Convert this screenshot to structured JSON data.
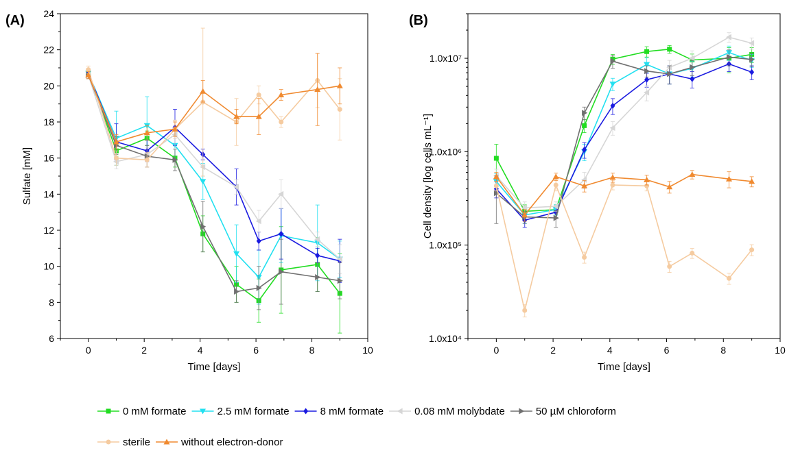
{
  "chart_data": [
    {
      "panel_label": "(A)",
      "type": "line",
      "xlabel": "Time [days]",
      "ylabel": "Sulfate [mM]",
      "xlim": [
        -1,
        10
      ],
      "ylim": [
        6,
        24
      ],
      "xticks": [
        0,
        2,
        4,
        6,
        8,
        10
      ],
      "yticks": [
        6,
        8,
        10,
        12,
        14,
        16,
        18,
        20,
        22,
        24
      ],
      "series": [
        {
          "name": "0 mM formate",
          "color": "#22dd22",
          "marker": "square",
          "x": [
            0,
            1,
            2.1,
            3.1,
            4.1,
            5.3,
            6.1,
            6.9,
            8.2,
            9
          ],
          "y": [
            20.7,
            16.4,
            17.1,
            16.0,
            11.8,
            9.0,
            8.1,
            9.8,
            10.1,
            8.5
          ],
          "err": [
            0.2,
            0.3,
            0.4,
            0.5,
            1.0,
            1.0,
            1.2,
            2.4,
            1.5,
            2.2
          ]
        },
        {
          "name": "2.5 mM formate",
          "color": "#22e0f0",
          "marker": "triangle-down",
          "x": [
            0,
            1,
            2.1,
            3.1,
            4.1,
            5.3,
            6.1,
            6.9,
            8.2,
            9
          ],
          "y": [
            20.7,
            17.1,
            17.8,
            16.7,
            14.7,
            10.7,
            9.4,
            11.7,
            11.3,
            10.4
          ],
          "err": [
            0.2,
            1.5,
            1.6,
            0.8,
            1.0,
            1.6,
            1.5,
            1.5,
            2.1,
            1.0
          ]
        },
        {
          "name": "8 mM formate",
          "color": "#1a1ae0",
          "marker": "diamond",
          "x": [
            0,
            1,
            2.1,
            3.1,
            4.1,
            5.3,
            6.1,
            6.9,
            8.2,
            9
          ],
          "y": [
            20.7,
            16.9,
            16.4,
            17.7,
            16.2,
            14.4,
            11.4,
            11.8,
            10.6,
            10.3
          ],
          "err": [
            0.2,
            1.0,
            0.6,
            1.0,
            0.3,
            1.0,
            0.5,
            1.4,
            0.4,
            1.2
          ]
        },
        {
          "name": "0.08 mM molybdate",
          "color": "#d6d6d6",
          "marker": "triangle-left",
          "x": [
            0,
            1,
            2.1,
            3.1,
            4.1,
            5.3,
            6.1,
            6.9,
            8.2,
            9
          ],
          "y": [
            20.6,
            15.8,
            16.2,
            17.3,
            15.5,
            14.4,
            12.5,
            14.0,
            11.5,
            10.4
          ],
          "err": [
            0.2,
            0.4,
            0.4,
            0.8,
            0.5,
            0.4,
            0.6,
            0.8,
            0.4,
            0.8
          ]
        },
        {
          "name": "50 µM chloroform",
          "color": "#707070",
          "marker": "triangle-right",
          "x": [
            0,
            1,
            2.1,
            3.1,
            4.1,
            5.3,
            6.1,
            6.9,
            8.2,
            9
          ],
          "y": [
            20.6,
            16.7,
            16.1,
            15.9,
            12.2,
            8.6,
            8.8,
            9.7,
            9.4,
            9.2
          ],
          "err": [
            0.2,
            0.5,
            0.6,
            0.6,
            1.4,
            0.6,
            1.2,
            1.8,
            0.8,
            1.0
          ]
        },
        {
          "name": "sterile",
          "color": "#f5cba0",
          "marker": "circle",
          "x": [
            0,
            1,
            2.1,
            3.1,
            4.1,
            5.3,
            6.1,
            6.9,
            8.2,
            9
          ],
          "y": [
            20.9,
            16.0,
            15.9,
            17.6,
            19.1,
            18.0,
            19.5,
            18.0,
            20.3,
            18.7
          ],
          "err": [
            0.2,
            0.4,
            0.4,
            0.5,
            4.1,
            1.3,
            0.5,
            0.3,
            1.5,
            1.7
          ]
        },
        {
          "name": "without electron-donor",
          "color": "#f08a30",
          "marker": "triangle-up",
          "x": [
            0,
            1,
            2.1,
            3.1,
            4.1,
            5.3,
            6.1,
            6.9,
            8.2,
            9
          ],
          "y": [
            20.6,
            16.9,
            17.4,
            17.6,
            19.7,
            18.3,
            18.3,
            19.5,
            19.8,
            20.0
          ],
          "err": [
            0.2,
            0.4,
            0.4,
            0.4,
            0.6,
            0.4,
            1.0,
            0.3,
            2.0,
            1.0
          ]
        }
      ]
    },
    {
      "panel_label": "(B)",
      "type": "line",
      "xlabel": "Time [days]",
      "ylabel": "Cell density [log cells mL⁻¹]",
      "yscale": "log",
      "xlim": [
        -1,
        10
      ],
      "ylim": [
        10000,
        30000000
      ],
      "xticks": [
        0,
        2,
        4,
        6,
        8,
        10
      ],
      "yticks": [
        10000,
        100000,
        1000000,
        10000000
      ],
      "ytick_labels": [
        "1.0x10⁴",
        "1.0x10⁵",
        "1.0x10⁶",
        "1.0x10⁷"
      ],
      "series": [
        {
          "name": "0 mM formate",
          "color": "#22dd22",
          "marker": "square",
          "x": [
            0,
            1,
            2.1,
            3.1,
            4.1,
            5.3,
            6.1,
            6.9,
            8.2,
            9
          ],
          "y": [
            850000,
            230000,
            240000,
            1900000,
            9800000,
            11800000,
            12500000,
            9600000,
            10000000,
            11000000
          ],
          "err": [
            350000,
            40000,
            30000,
            300000,
            1200000,
            1500000,
            1200000,
            1500000,
            3000000,
            2000000
          ]
        },
        {
          "name": "2.5 mM formate",
          "color": "#22e0f0",
          "marker": "triangle-down",
          "x": [
            0,
            1,
            2.1,
            3.1,
            4.1,
            5.3,
            6.1,
            6.9,
            8.2,
            9
          ],
          "y": [
            480000,
            210000,
            240000,
            1000000,
            5300000,
            8600000,
            6800000,
            7800000,
            11500000,
            9500000
          ],
          "err": [
            100000,
            40000,
            30000,
            200000,
            800000,
            1500000,
            1500000,
            1500000,
            2000000,
            1500000
          ]
        },
        {
          "name": "8 mM formate",
          "color": "#1a1ae0",
          "marker": "diamond",
          "x": [
            0,
            1,
            2.1,
            3.1,
            4.1,
            5.3,
            6.1,
            6.9,
            8.2,
            9
          ],
          "y": [
            400000,
            185000,
            225000,
            1050000,
            3100000,
            5900000,
            6800000,
            6000000,
            8700000,
            7100000
          ],
          "err": [
            80000,
            30000,
            30000,
            200000,
            600000,
            1000000,
            1500000,
            1200000,
            1500000,
            1200000
          ]
        },
        {
          "name": "0.08 mM molybdate",
          "color": "#d6d6d6",
          "marker": "triangle-left",
          "x": [
            0,
            1,
            2.1,
            3.1,
            4.1,
            5.3,
            6.1,
            6.9,
            8.2,
            9
          ],
          "y": [
            550000,
            250000,
            260000,
            500000,
            1800000,
            4300000,
            8000000,
            10000000,
            16800000,
            14500000
          ],
          "err": [
            100000,
            40000,
            30000,
            100000,
            300000,
            800000,
            1500000,
            2000000,
            2000000,
            2000000
          ]
        },
        {
          "name": "50 µM chloroform",
          "color": "#707070",
          "marker": "triangle-right",
          "x": [
            0,
            1,
            2.1,
            3.1,
            4.1,
            5.3,
            6.1,
            6.9,
            8.2,
            9
          ],
          "y": [
            360000,
            200000,
            195000,
            2600000,
            9300000,
            7300000,
            6800000,
            8000000,
            10300000,
            9700000
          ],
          "err": [
            190000,
            30000,
            40000,
            400000,
            1500000,
            1000000,
            1500000,
            1500000,
            2000000,
            1500000
          ]
        },
        {
          "name": "sterile",
          "color": "#f5cba0",
          "marker": "circle",
          "x": [
            0,
            1,
            2.1,
            3.1,
            4.1,
            5.3,
            6.1,
            6.9,
            8.2,
            9
          ],
          "y": [
            430000,
            20000,
            440000,
            74000,
            440000,
            430000,
            59000,
            82000,
            44000,
            89000
          ],
          "err": [
            50000,
            3000,
            60000,
            10000,
            50000,
            50000,
            8000,
            10000,
            6000,
            12000
          ]
        },
        {
          "name": "without electron-donor",
          "color": "#f08a30",
          "marker": "triangle-up",
          "x": [
            0,
            1,
            2.1,
            3.1,
            4.1,
            5.3,
            6.1,
            6.9,
            8.2,
            9
          ],
          "y": [
            540000,
            210000,
            540000,
            430000,
            530000,
            500000,
            420000,
            570000,
            510000,
            480000
          ],
          "err": [
            60000,
            30000,
            50000,
            60000,
            60000,
            60000,
            60000,
            60000,
            100000,
            60000
          ]
        }
      ]
    }
  ],
  "legend": {
    "placement": "bottom",
    "rows": [
      [
        "0 mM formate",
        "2.5 mM formate",
        "8 mM formate",
        "0.08 mM molybdate",
        "50 µM chloroform"
      ],
      [
        "sterile",
        "without electron-donor"
      ]
    ]
  }
}
